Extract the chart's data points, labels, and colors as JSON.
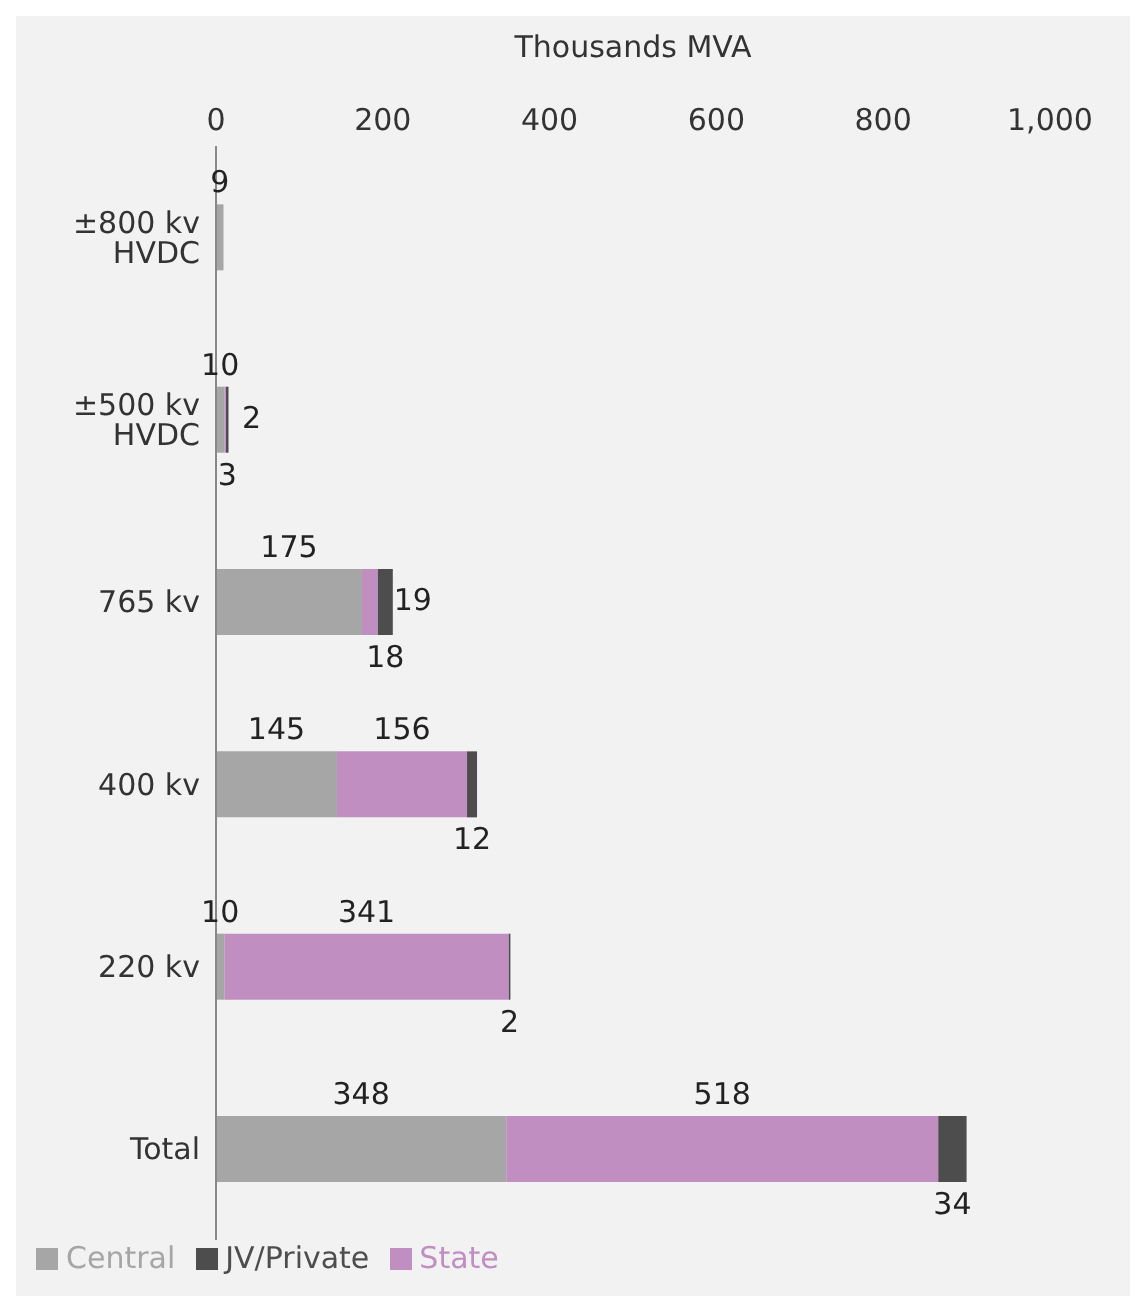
{
  "chart_data": {
    "type": "bar",
    "orientation": "horizontal",
    "stacked": true,
    "xlabel": "Thousands MVA",
    "categories": [
      "±800 kv HVDC",
      "±500 kv HVDC",
      "765 kv",
      "400 kv",
      "220 kv",
      "Total"
    ],
    "series": [
      {
        "name": "Central",
        "color": "#a6a6a6",
        "values": [
          9,
          10,
          175,
          145,
          10,
          348
        ]
      },
      {
        "name": "State",
        "color": "#c08ec0",
        "values": [
          null,
          2,
          19,
          156,
          341,
          518
        ]
      },
      {
        "name": "JV/Private",
        "color": "#4d4d4d",
        "values": [
          null,
          3,
          18,
          12,
          2,
          34
        ]
      }
    ],
    "xlim": [
      0,
      1000
    ],
    "xticks": [
      0,
      200,
      400,
      600,
      800,
      {
        "value": 1000,
        "label": "1,000"
      }
    ],
    "data_labels": true,
    "grid": false,
    "legend": "bottom left"
  }
}
